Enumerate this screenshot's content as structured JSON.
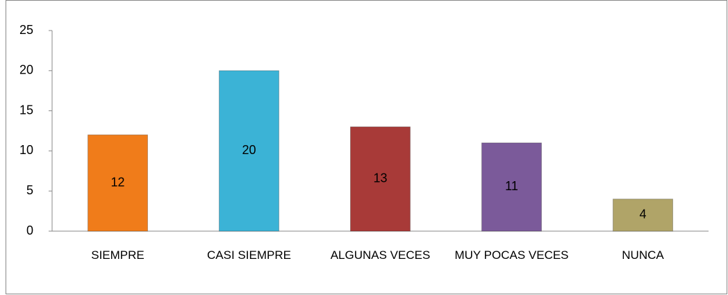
{
  "chart_data": {
    "type": "bar",
    "categories": [
      "SIEMPRE",
      "CASI SIEMPRE",
      "ALGUNAS VECES",
      "MUY POCAS VECES",
      "NUNCA"
    ],
    "values": [
      12,
      20,
      13,
      11,
      4
    ],
    "colors": [
      "#f07c1a",
      "#3bb3d6",
      "#a83a38",
      "#7b5a9a",
      "#b0a468"
    ],
    "ylim": [
      0,
      25
    ],
    "yticks": [
      0,
      5,
      10,
      15,
      20,
      25
    ],
    "grid": false
  }
}
